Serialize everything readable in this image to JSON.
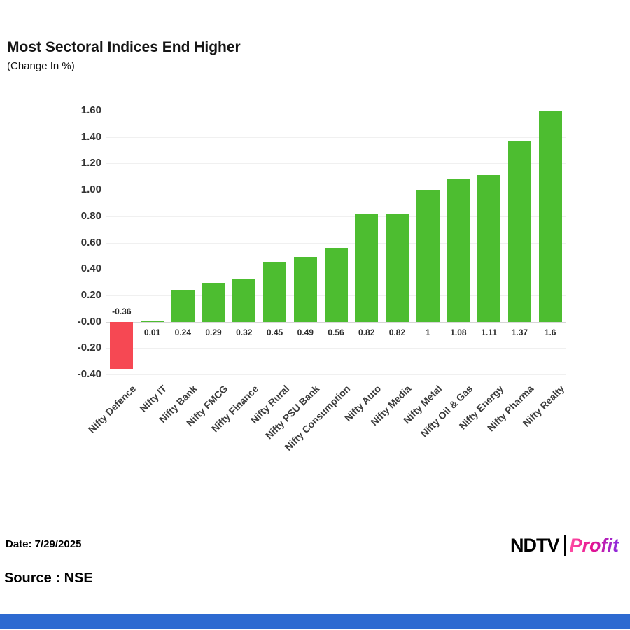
{
  "page": {
    "title": "Most Sectoral Indices End Higher",
    "subtitle": "(Change In %)",
    "date_label": "Date: 7/29/2025",
    "source_label": "Source : NSE",
    "logo": {
      "ndtv": "NDTV",
      "profit": "Profit"
    }
  },
  "colors": {
    "positive_bar": "#4dbd30",
    "negative_bar": "#f64853",
    "footer_strip": "#2e6ad1",
    "axis_text": "#333333",
    "grid_line": "#f0f0f0",
    "zero_line": "#d6d6d6"
  },
  "chart_data": {
    "type": "bar",
    "title": "Most Sectoral Indices End Higher",
    "subtitle": "(Change In %)",
    "xlabel": "",
    "ylabel": "",
    "ylim": [
      -0.4,
      1.6
    ],
    "ytick_step": 0.2,
    "yticks": [
      "1.60",
      "1.40",
      "1.20",
      "1.00",
      "0.80",
      "0.60",
      "0.40",
      "0.20",
      "-0.00",
      "-0.20",
      "-0.40"
    ],
    "grid": true,
    "legend": false,
    "categories": [
      "Nifty Defence",
      "Nifty IT",
      "Nifty Bank",
      "Nifty FMCG",
      "Nifty Finance",
      "Nifty Rural",
      "Nifty PSU Bank",
      "Nifty Consumption",
      "Nifty Auto",
      "Nifty Media",
      "Nifty Metal",
      "Nifty Oil & Gas",
      "Nifty Energy",
      "Nifty Pharma",
      "Nifty Realty"
    ],
    "values": [
      -0.36,
      0.01,
      0.24,
      0.29,
      0.32,
      0.45,
      0.49,
      0.56,
      0.82,
      0.82,
      1,
      1.08,
      1.11,
      1.37,
      1.6
    ],
    "value_labels": [
      "-0.36",
      "0.01",
      "0.24",
      "0.29",
      "0.32",
      "0.45",
      "0.49",
      "0.56",
      "0.82",
      "0.82",
      "1",
      "1.08",
      "1.11",
      "1.37",
      "1.6"
    ]
  }
}
